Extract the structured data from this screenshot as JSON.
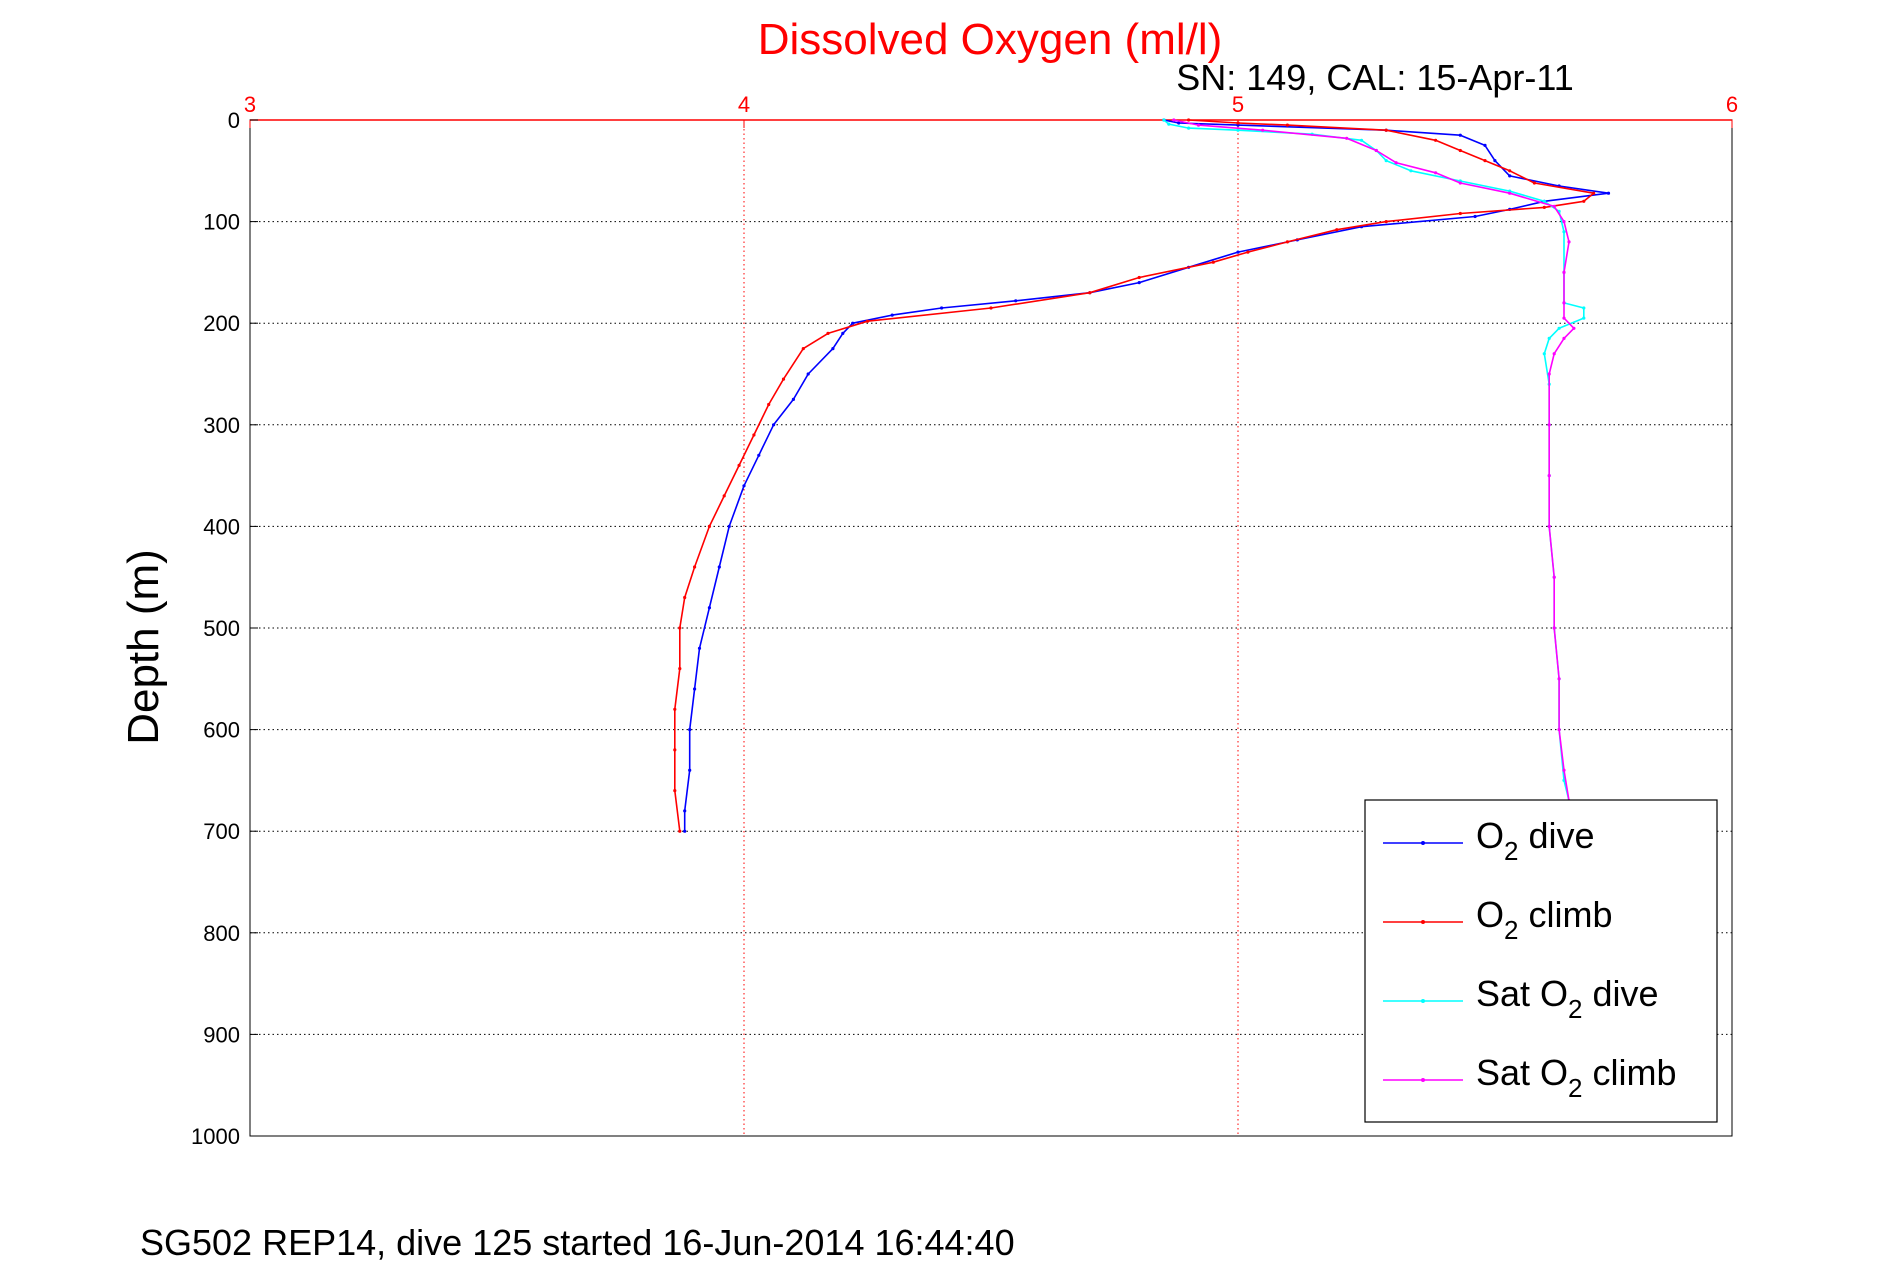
{
  "chart_data": {
    "type": "line",
    "title": "Dissolved Oxygen (ml/l)",
    "subtitle": "SN: 149, CAL: 15-Apr-11",
    "footer": "SG502 REP14, dive 125 started 16-Jun-2014 16:44:40",
    "ylabel": "Depth (m)",
    "xlim": [
      3,
      6
    ],
    "ylim": [
      0,
      1000
    ],
    "y_reversed": true,
    "x_axis_position": "top",
    "x_ticks": [
      "3",
      "4",
      "5",
      "6"
    ],
    "y_ticks": [
      "0",
      "100",
      "200",
      "300",
      "400",
      "500",
      "600",
      "700",
      "800",
      "900",
      "1000"
    ],
    "grid": true,
    "legend_position": "bottom-right",
    "colors": {
      "title": "#ff0000",
      "x_axis": "#ff0000",
      "grid_x": "#ff0000",
      "grid_y": "#000000"
    },
    "series": [
      {
        "name": "O2 dive",
        "legend": {
          "pre": "O",
          "sub": "2",
          "post": " dive"
        },
        "color": "#0000ff",
        "points": [
          [
            4.85,
            0
          ],
          [
            4.88,
            3
          ],
          [
            5.0,
            5
          ],
          [
            5.3,
            10
          ],
          [
            5.45,
            15
          ],
          [
            5.5,
            25
          ],
          [
            5.52,
            40
          ],
          [
            5.55,
            55
          ],
          [
            5.65,
            65
          ],
          [
            5.75,
            72
          ],
          [
            5.62,
            80
          ],
          [
            5.55,
            88
          ],
          [
            5.48,
            95
          ],
          [
            5.25,
            105
          ],
          [
            5.12,
            118
          ],
          [
            5.0,
            130
          ],
          [
            4.9,
            145
          ],
          [
            4.8,
            160
          ],
          [
            4.7,
            170
          ],
          [
            4.55,
            178
          ],
          [
            4.4,
            185
          ],
          [
            4.3,
            192
          ],
          [
            4.22,
            200
          ],
          [
            4.2,
            210
          ],
          [
            4.18,
            225
          ],
          [
            4.13,
            250
          ],
          [
            4.1,
            275
          ],
          [
            4.06,
            300
          ],
          [
            4.03,
            330
          ],
          [
            4.0,
            360
          ],
          [
            3.97,
            400
          ],
          [
            3.95,
            440
          ],
          [
            3.93,
            480
          ],
          [
            3.91,
            520
          ],
          [
            3.9,
            560
          ],
          [
            3.89,
            600
          ],
          [
            3.89,
            640
          ],
          [
            3.88,
            680
          ],
          [
            3.88,
            700
          ]
        ]
      },
      {
        "name": "O2 climb",
        "legend": {
          "pre": "O",
          "sub": "2",
          "post": " climb"
        },
        "color": "#ff0000",
        "points": [
          [
            3.87,
            700
          ],
          [
            3.86,
            660
          ],
          [
            3.86,
            620
          ],
          [
            3.86,
            580
          ],
          [
            3.87,
            540
          ],
          [
            3.87,
            500
          ],
          [
            3.88,
            470
          ],
          [
            3.9,
            440
          ],
          [
            3.93,
            400
          ],
          [
            3.96,
            370
          ],
          [
            3.99,
            340
          ],
          [
            4.02,
            310
          ],
          [
            4.05,
            280
          ],
          [
            4.08,
            255
          ],
          [
            4.12,
            225
          ],
          [
            4.17,
            210
          ],
          [
            4.25,
            198
          ],
          [
            4.5,
            185
          ],
          [
            4.7,
            170
          ],
          [
            4.8,
            155
          ],
          [
            4.95,
            140
          ],
          [
            5.02,
            130
          ],
          [
            5.1,
            120
          ],
          [
            5.2,
            108
          ],
          [
            5.3,
            100
          ],
          [
            5.45,
            92
          ],
          [
            5.62,
            86
          ],
          [
            5.7,
            80
          ],
          [
            5.72,
            72
          ],
          [
            5.6,
            62
          ],
          [
            5.55,
            50
          ],
          [
            5.5,
            40
          ],
          [
            5.45,
            30
          ],
          [
            5.4,
            20
          ],
          [
            5.3,
            10
          ],
          [
            5.1,
            5
          ],
          [
            5.0,
            3
          ],
          [
            4.9,
            0
          ]
        ]
      },
      {
        "name": "Sat O2 dive",
        "legend": {
          "pre": "Sat O",
          "sub": "2",
          "post": " dive"
        },
        "color": "#00ffff",
        "points": [
          [
            4.85,
            0
          ],
          [
            4.86,
            4
          ],
          [
            4.9,
            8
          ],
          [
            5.0,
            10
          ],
          [
            5.15,
            14
          ],
          [
            5.25,
            20
          ],
          [
            5.28,
            30
          ],
          [
            5.3,
            40
          ],
          [
            5.35,
            50
          ],
          [
            5.45,
            60
          ],
          [
            5.55,
            70
          ],
          [
            5.62,
            80
          ],
          [
            5.65,
            90
          ],
          [
            5.66,
            110
          ],
          [
            5.66,
            150
          ],
          [
            5.66,
            180
          ],
          [
            5.7,
            185
          ],
          [
            5.7,
            195
          ],
          [
            5.65,
            205
          ],
          [
            5.63,
            215
          ],
          [
            5.62,
            230
          ],
          [
            5.63,
            260
          ],
          [
            5.63,
            300
          ],
          [
            5.63,
            350
          ],
          [
            5.63,
            400
          ],
          [
            5.64,
            450
          ],
          [
            5.64,
            500
          ],
          [
            5.65,
            550
          ],
          [
            5.65,
            600
          ],
          [
            5.66,
            650
          ],
          [
            5.67,
            670
          ]
        ]
      },
      {
        "name": "Sat O2 climb",
        "legend": {
          "pre": "Sat O",
          "sub": "2",
          "post": " climb"
        },
        "color": "#ff00ff",
        "points": [
          [
            5.67,
            670
          ],
          [
            5.66,
            640
          ],
          [
            5.65,
            600
          ],
          [
            5.65,
            550
          ],
          [
            5.64,
            500
          ],
          [
            5.64,
            450
          ],
          [
            5.63,
            400
          ],
          [
            5.63,
            350
          ],
          [
            5.63,
            300
          ],
          [
            5.63,
            250
          ],
          [
            5.64,
            230
          ],
          [
            5.66,
            215
          ],
          [
            5.68,
            205
          ],
          [
            5.66,
            195
          ],
          [
            5.66,
            180
          ],
          [
            5.66,
            150
          ],
          [
            5.67,
            120
          ],
          [
            5.66,
            100
          ],
          [
            5.64,
            85
          ],
          [
            5.55,
            72
          ],
          [
            5.45,
            62
          ],
          [
            5.4,
            52
          ],
          [
            5.32,
            42
          ],
          [
            5.28,
            30
          ],
          [
            5.22,
            18
          ],
          [
            5.05,
            10
          ],
          [
            4.92,
            5
          ],
          [
            4.87,
            0
          ]
        ]
      }
    ]
  }
}
